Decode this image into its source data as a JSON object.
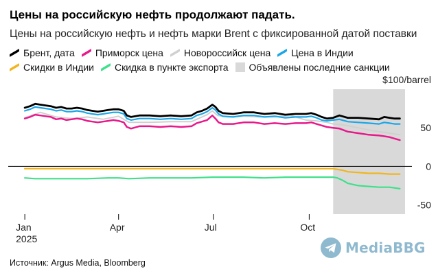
{
  "title": "Цены на российскую нефть продолжают падать.",
  "subtitle": "Цены на российскую нефть и нефть марки Brent с фиксированной датой поставки",
  "legend_rows": [
    [
      {
        "label": "Брент, дата",
        "color": "#000000",
        "kind": "line"
      },
      {
        "label": "Приморск цена",
        "color": "#e8198b",
        "kind": "line"
      },
      {
        "label": "Новороссийск цена",
        "color": "#d0d0d0",
        "kind": "line"
      },
      {
        "label": "Цена в Индии",
        "color": "#1aa7e8",
        "kind": "line"
      }
    ],
    [
      {
        "label": "Скидки в Индии",
        "color": "#f2b51a",
        "kind": "line"
      },
      {
        "label": "Скидка в пункте экспорта",
        "color": "#3ee08a",
        "kind": "line"
      },
      {
        "label": "Объявлены последние санкции",
        "color": "#d9d9d9",
        "kind": "box"
      }
    ]
  ],
  "source": "Источник: Argus Media, Bloomberg",
  "watermark": {
    "text": "MediaBBG",
    "icon": "telegram-icon",
    "color": "#8fb9cf"
  },
  "chart_data": {
    "type": "line",
    "x_unit": "day of 2025 (0 = 1 Jan)",
    "x_ticks": [
      {
        "x": 0,
        "label": "Jan",
        "sublabel": "2025"
      },
      {
        "x": 90,
        "label": "Apr",
        "sublabel": ""
      },
      {
        "x": 181,
        "label": "Jul",
        "sublabel": ""
      },
      {
        "x": 273,
        "label": "Oct",
        "sublabel": ""
      }
    ],
    "xlim": [
      -8,
      365
    ],
    "ylim": [
      -62,
      100
    ],
    "y_ticks": [
      50,
      0,
      -50
    ],
    "y_unit_label": "$100/barrel",
    "y_axis_position": "right",
    "zero_line": true,
    "grid": false,
    "shaded_region": {
      "from": 296,
      "to": 365,
      "color": "#d9d9d9",
      "label": "Объявлены последние санкции"
    },
    "series": [
      {
        "name": "Новороссийск цена",
        "color": "#d0d0d0",
        "width": 2,
        "x": [
          0,
          15,
          30,
          45,
          60,
          75,
          90,
          100,
          120,
          140,
          160,
          175,
          180,
          185,
          195,
          210,
          225,
          240,
          255,
          270,
          280,
          290,
          296,
          305,
          320,
          335,
          345,
          360
        ],
        "y": [
          63,
          70,
          64,
          62,
          64,
          61,
          65,
          57,
          57,
          58,
          58,
          67,
          72,
          66,
          64,
          65,
          64,
          64,
          66,
          60,
          59,
          57,
          55,
          54,
          50,
          46,
          44,
          41
        ]
      },
      {
        "name": "Брент, дата",
        "color": "#000000",
        "width": 2.8,
        "x": [
          0,
          5,
          10,
          15,
          20,
          25,
          30,
          35,
          40,
          45,
          50,
          55,
          60,
          65,
          70,
          75,
          80,
          85,
          90,
          95,
          98,
          102,
          110,
          120,
          130,
          140,
          150,
          160,
          165,
          170,
          175,
          180,
          183,
          186,
          190,
          200,
          210,
          220,
          230,
          240,
          250,
          260,
          270,
          275,
          280,
          285,
          290,
          296,
          302,
          310,
          320,
          330,
          340,
          345,
          350,
          355,
          360
        ],
        "y": [
          76,
          78,
          81,
          80,
          79,
          78,
          76,
          77,
          75,
          75,
          76,
          75,
          73,
          72,
          71,
          72,
          73,
          74,
          74,
          72,
          66,
          64,
          66,
          66,
          65,
          66,
          65,
          66,
          70,
          72,
          75,
          80,
          77,
          72,
          69,
          68,
          70,
          70,
          68,
          69,
          67,
          68,
          68,
          69,
          67,
          64,
          62,
          63,
          66,
          63,
          63,
          62,
          61,
          64,
          63,
          62,
          62
        ]
      },
      {
        "name": "Цена в Индии",
        "color": "#1aa7e8",
        "width": 2.2,
        "x": [
          0,
          5,
          10,
          15,
          20,
          25,
          30,
          35,
          40,
          45,
          50,
          55,
          60,
          65,
          70,
          75,
          80,
          85,
          90,
          95,
          98,
          102,
          110,
          120,
          130,
          140,
          150,
          160,
          165,
          170,
          175,
          180,
          183,
          186,
          190,
          200,
          210,
          220,
          230,
          240,
          250,
          260,
          270,
          275,
          280,
          285,
          290,
          296,
          302,
          310,
          320,
          330,
          340,
          345,
          350,
          355,
          360
        ],
        "y": [
          72,
          74,
          77,
          76,
          75,
          74,
          72,
          73,
          71,
          71,
          72,
          71,
          69,
          68,
          67,
          68,
          69,
          70,
          70,
          68,
          62,
          60,
          62,
          62,
          61,
          62,
          61,
          62,
          66,
          68,
          71,
          76,
          73,
          68,
          65,
          64,
          66,
          66,
          64,
          65,
          63,
          64,
          64,
          65,
          63,
          60,
          59,
          60,
          61,
          58,
          57,
          56,
          55,
          57,
          56,
          55,
          55
        ]
      },
      {
        "name": "Приморск цена",
        "color": "#e8198b",
        "width": 2.5,
        "x": [
          0,
          5,
          10,
          15,
          20,
          25,
          30,
          35,
          40,
          45,
          50,
          55,
          60,
          65,
          70,
          75,
          80,
          85,
          90,
          95,
          98,
          102,
          110,
          120,
          130,
          140,
          150,
          160,
          165,
          170,
          175,
          180,
          183,
          186,
          190,
          200,
          210,
          220,
          230,
          240,
          250,
          260,
          270,
          275,
          280,
          285,
          290,
          296,
          302,
          310,
          320,
          330,
          340,
          345,
          350,
          355,
          360
        ],
        "y": [
          62,
          64,
          67,
          66,
          65,
          64,
          61,
          62,
          60,
          61,
          62,
          61,
          59,
          58,
          57,
          58,
          59,
          60,
          59,
          57,
          51,
          49,
          52,
          52,
          51,
          52,
          51,
          52,
          56,
          58,
          60,
          66,
          62,
          57,
          55,
          55,
          57,
          57,
          55,
          56,
          55,
          56,
          56,
          57,
          55,
          53,
          51,
          50,
          49,
          45,
          43,
          41,
          40,
          39,
          38,
          36,
          34
        ]
      },
      {
        "name": "Скидки в Индии",
        "color": "#f2b51a",
        "width": 2.2,
        "x": [
          0,
          30,
          60,
          90,
          120,
          150,
          180,
          210,
          240,
          270,
          290,
          296,
          300,
          305,
          310,
          320,
          330,
          340,
          350,
          360
        ],
        "y": [
          -3,
          -3,
          -3,
          -3,
          -3,
          -3,
          -3,
          -3,
          -3,
          -3,
          -3,
          -3,
          -4,
          -5,
          -7,
          -8,
          -9,
          -9,
          -10,
          -10
        ]
      },
      {
        "name": "Скидка в пункте экспорта",
        "color": "#3ee08a",
        "width": 2.2,
        "x": [
          0,
          10,
          20,
          40,
          60,
          80,
          90,
          100,
          120,
          140,
          160,
          180,
          190,
          210,
          230,
          250,
          270,
          285,
          296,
          300,
          305,
          310,
          320,
          330,
          340,
          350,
          360
        ],
        "y": [
          -15,
          -16,
          -16,
          -16,
          -16,
          -15,
          -15,
          -16,
          -15,
          -15,
          -15,
          -14,
          -14,
          -14,
          -15,
          -14,
          -14,
          -14,
          -14,
          -15,
          -18,
          -22,
          -25,
          -26,
          -27,
          -27,
          -29
        ]
      }
    ]
  }
}
